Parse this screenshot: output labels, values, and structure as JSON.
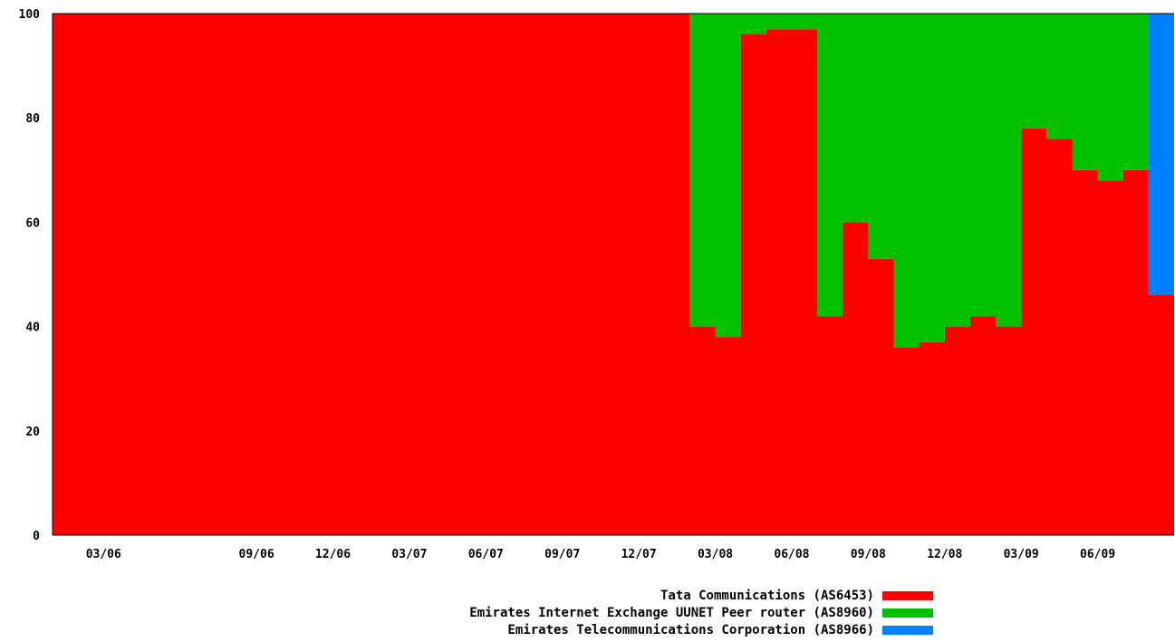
{
  "chart_data": {
    "type": "area",
    "stacked": true,
    "percent": true,
    "ylim": [
      0,
      100
    ],
    "yticks": [
      "0",
      "20",
      "40",
      "60",
      "80",
      "100"
    ],
    "xticks": [
      "03/06",
      "09/06",
      "12/06",
      "03/07",
      "06/07",
      "09/07",
      "12/07",
      "03/08",
      "06/08",
      "09/08",
      "12/08",
      "03/09",
      "06/09"
    ],
    "x": [
      "01/06",
      "02/06",
      "03/06",
      "04/06",
      "05/06",
      "06/06",
      "07/06",
      "08/06",
      "09/06",
      "10/06",
      "11/06",
      "12/06",
      "01/07",
      "02/07",
      "03/07",
      "04/07",
      "05/07",
      "06/07",
      "07/07",
      "08/07",
      "09/07",
      "10/07",
      "11/07",
      "12/07",
      "01/08",
      "02/08",
      "03/08",
      "04/08",
      "05/08",
      "06/08",
      "07/08",
      "08/08",
      "09/08",
      "10/08",
      "11/08",
      "12/08",
      "01/09",
      "02/09",
      "03/09",
      "04/09",
      "05/09",
      "06/09",
      "07/09",
      "08/09"
    ],
    "series": [
      {
        "name": "Tata Communications (AS6453)",
        "color": "#ff0000",
        "values": [
          100,
          100,
          100,
          100,
          100,
          100,
          100,
          100,
          100,
          100,
          100,
          100,
          100,
          100,
          100,
          100,
          100,
          100,
          100,
          100,
          100,
          100,
          100,
          100,
          100,
          40,
          38,
          96,
          97,
          97,
          42,
          60,
          53,
          36,
          37,
          40,
          42,
          40,
          78,
          76,
          70,
          68,
          70,
          46
        ]
      },
      {
        "name": "Emirates Internet Exchange UUNET Peer router (AS8960)",
        "color": "#00c000",
        "values": [
          0,
          0,
          0,
          0,
          0,
          0,
          0,
          0,
          0,
          0,
          0,
          0,
          0,
          0,
          0,
          0,
          0,
          0,
          0,
          0,
          0,
          0,
          0,
          0,
          0,
          60,
          62,
          4,
          3,
          3,
          58,
          40,
          47,
          64,
          63,
          60,
          58,
          60,
          22,
          24,
          30,
          32,
          30,
          0
        ]
      },
      {
        "name": "Emirates Telecommunications Corporation (AS8966)",
        "color": "#0080ff",
        "values": [
          0,
          0,
          0,
          0,
          0,
          0,
          0,
          0,
          0,
          0,
          0,
          0,
          0,
          0,
          0,
          0,
          0,
          0,
          0,
          0,
          0,
          0,
          0,
          0,
          0,
          0,
          0,
          0,
          0,
          0,
          0,
          0,
          0,
          0,
          0,
          0,
          0,
          0,
          0,
          0,
          0,
          0,
          0,
          54
        ]
      }
    ],
    "grid": false,
    "legend_position": "bottom"
  }
}
